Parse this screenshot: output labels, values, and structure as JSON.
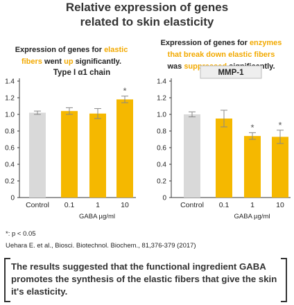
{
  "title_lines": [
    "Relative expression of genes",
    "related to skin elasticity"
  ],
  "left_description": {
    "line1_a": "Expression of genes for ",
    "line1_hl": "elastic",
    "line2_hl1": "fibers",
    "line2_b": " went ",
    "line2_hl2": "up",
    "line2_c": " significantly."
  },
  "right_description": {
    "line1_a": "Expression of genes for ",
    "line1_hl": "enzymes",
    "line2_hl": "that break down elastic fibers",
    "line3_a": "was ",
    "line3_hl": "suppressed",
    "line3_b": " significantly."
  },
  "colors": {
    "bar_control": "#d9d9d9",
    "bar_gaba": "#f5b800",
    "highlight_text": "#f2a900",
    "axis": "#333333",
    "error_bar": "#888888"
  },
  "chart_data": [
    {
      "type": "bar",
      "title": "Type I α1 chain",
      "categories": [
        "Control",
        "0.1",
        "1",
        "10"
      ],
      "values": [
        1.02,
        1.04,
        1.01,
        1.18
      ],
      "errors": [
        0.02,
        0.04,
        0.06,
        0.04
      ],
      "significant": [
        false,
        false,
        false,
        true
      ],
      "ylim": [
        0,
        1.4
      ],
      "yticks": [
        "0",
        "0.2",
        "0.4",
        "0.6",
        "0.8",
        "1.0",
        "1.2",
        "1.4"
      ],
      "xlabel": "GABA µg/ml",
      "significance_marker": "*"
    },
    {
      "type": "bar",
      "title": "MMP-1",
      "categories": [
        "Control",
        "0.1",
        "1",
        "10"
      ],
      "values": [
        1.0,
        0.95,
        0.74,
        0.73
      ],
      "errors": [
        0.03,
        0.1,
        0.04,
        0.08
      ],
      "significant": [
        false,
        false,
        true,
        true
      ],
      "ylim": [
        0,
        1.4
      ],
      "yticks": [
        "0",
        "0.2",
        "0.4",
        "0.6",
        "0.8",
        "1.0",
        "1.2",
        "1.4"
      ],
      "xlabel": "GABA µg/ml",
      "significance_marker": "*"
    }
  ],
  "footnotes": {
    "significance": "*: p < 0.05",
    "citation": "Uehara E. et al., Biosci. Biotechnol. Biochem., 81,376-379 (2017)"
  },
  "conclusion": "The results suggested that the functional ingredient GABA promotes the synthesis of the elastic fibers that give the skin it's elasticity."
}
